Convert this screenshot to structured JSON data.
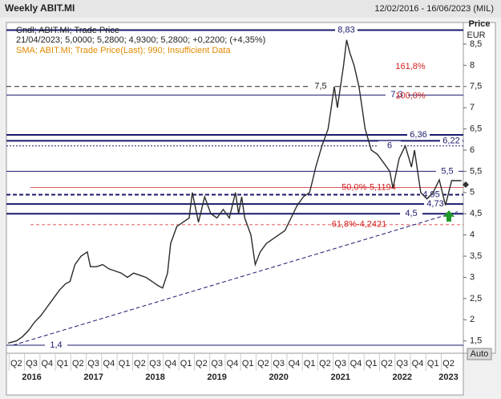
{
  "chart_data": {
    "type": "line",
    "title": "Weekly ABIT.MI",
    "date_range": "12/02/2016 - 16/06/2023 (MIL)",
    "y_axis_label": [
      "Price",
      "EUR"
    ],
    "legend_lines": [
      "Cndl; ABIT.MI; Trade Price",
      "21/04/2023; 5,0000; 5,2800; 4,9300; 5,2800; +0,2200; (+4,35%)",
      "SMA; ABIT.MI; Trade Price(Last); 990; Insufficient Data"
    ],
    "button": "Auto",
    "xlim": [
      2016.09,
      2023.49
    ],
    "ylim": [
      1.21,
      9.01
    ],
    "yticks": [
      {
        "value": 1.5,
        "label": "1,5"
      },
      {
        "value": 2,
        "label": "2"
      },
      {
        "value": 2.5,
        "label": "2,5"
      },
      {
        "value": 3,
        "label": "3"
      },
      {
        "value": 3.5,
        "label": "3,5"
      },
      {
        "value": 4,
        "label": "4"
      },
      {
        "value": 4.5,
        "label": "4,5"
      },
      {
        "value": 5,
        "label": "5"
      },
      {
        "value": 5.5,
        "label": "5,5"
      },
      {
        "value": 6,
        "label": "6"
      },
      {
        "value": 6.5,
        "label": "6,5"
      },
      {
        "value": 7,
        "label": "7"
      },
      {
        "value": 7.5,
        "label": "7,5"
      },
      {
        "value": 8,
        "label": "8"
      },
      {
        "value": 8.5,
        "label": "8,5"
      }
    ],
    "xticks": [
      {
        "value": 2016.25,
        "label": "Q2"
      },
      {
        "value": 2016.5,
        "label": "Q3"
      },
      {
        "value": 2016.75,
        "label": "Q4"
      },
      {
        "value": 2017.0,
        "label": "Q1"
      },
      {
        "value": 2017.25,
        "label": "Q2"
      },
      {
        "value": 2017.5,
        "label": "Q3"
      },
      {
        "value": 2017.75,
        "label": "Q4"
      },
      {
        "value": 2018.0,
        "label": "Q1"
      },
      {
        "value": 2018.25,
        "label": "Q2"
      },
      {
        "value": 2018.5,
        "label": "Q3"
      },
      {
        "value": 2018.75,
        "label": "Q4"
      },
      {
        "value": 2019.0,
        "label": "Q1"
      },
      {
        "value": 2019.25,
        "label": "Q2"
      },
      {
        "value": 2019.5,
        "label": "Q3"
      },
      {
        "value": 2019.75,
        "label": "Q4"
      },
      {
        "value": 2020.0,
        "label": "Q1"
      },
      {
        "value": 2020.25,
        "label": "Q2"
      },
      {
        "value": 2020.5,
        "label": "Q3"
      },
      {
        "value": 2020.75,
        "label": "Q4"
      },
      {
        "value": 2021.0,
        "label": "Q1"
      },
      {
        "value": 2021.25,
        "label": "Q2"
      },
      {
        "value": 2021.5,
        "label": "Q3"
      },
      {
        "value": 2021.75,
        "label": "Q4"
      },
      {
        "value": 2022.0,
        "label": "Q1"
      },
      {
        "value": 2022.25,
        "label": "Q2"
      },
      {
        "value": 2022.5,
        "label": "Q3"
      },
      {
        "value": 2022.75,
        "label": "Q4"
      },
      {
        "value": 2023.0,
        "label": "Q1"
      },
      {
        "value": 2023.25,
        "label": "Q2"
      }
    ],
    "year_ticks": [
      {
        "value": 2016.5,
        "label": "2016"
      },
      {
        "value": 2017.5,
        "label": "2017"
      },
      {
        "value": 2018.5,
        "label": "2018"
      },
      {
        "value": 2019.5,
        "label": "2019"
      },
      {
        "value": 2020.5,
        "label": "2020"
      },
      {
        "value": 2021.5,
        "label": "2021"
      },
      {
        "value": 2022.5,
        "label": "2022"
      },
      {
        "value": 2023.25,
        "label": "2023"
      }
    ],
    "series": [
      {
        "name": "Cndl; ABIT.MI; Trade Price",
        "color": "#2a2a2a",
        "x": [
          2016.12,
          2016.25,
          2016.35,
          2016.45,
          2016.55,
          2016.65,
          2016.75,
          2016.85,
          2016.95,
          2017.05,
          2017.12,
          2017.2,
          2017.3,
          2017.4,
          2017.45,
          2017.55,
          2017.65,
          2017.75,
          2017.85,
          2017.95,
          2018.05,
          2018.15,
          2018.25,
          2018.35,
          2018.45,
          2018.55,
          2018.62,
          2018.7,
          2018.75,
          2018.85,
          2018.95,
          2019.05,
          2019.1,
          2019.2,
          2019.3,
          2019.4,
          2019.5,
          2019.6,
          2019.7,
          2019.8,
          2019.85,
          2019.9,
          2019.95,
          2020.05,
          2020.12,
          2020.2,
          2020.3,
          2020.4,
          2020.5,
          2020.6,
          2020.7,
          2020.8,
          2020.9,
          2021.0,
          2021.05,
          2021.1,
          2021.2,
          2021.3,
          2021.35,
          2021.4,
          2021.45,
          2021.55,
          2021.6,
          2021.65,
          2021.72,
          2021.8,
          2021.85,
          2021.9,
          2022.0,
          2022.1,
          2022.2,
          2022.3,
          2022.35,
          2022.45,
          2022.55,
          2022.65,
          2022.7,
          2022.8,
          2022.9,
          2023.0,
          2023.1,
          2023.2,
          2023.3,
          2023.46
        ],
        "values": [
          1.45,
          1.5,
          1.6,
          1.75,
          1.95,
          2.1,
          2.3,
          2.5,
          2.7,
          2.85,
          2.9,
          3.3,
          3.5,
          3.6,
          3.25,
          3.25,
          3.3,
          3.2,
          3.15,
          3.1,
          3.0,
          3.1,
          3.05,
          3.0,
          2.9,
          2.8,
          2.75,
          3.1,
          3.8,
          4.2,
          4.3,
          4.4,
          5.0,
          4.3,
          4.9,
          4.5,
          4.4,
          4.6,
          4.4,
          5.0,
          4.5,
          4.9,
          4.4,
          4.0,
          3.3,
          3.6,
          3.8,
          3.9,
          4.0,
          4.1,
          4.4,
          4.7,
          4.9,
          5.0,
          5.3,
          5.6,
          6.1,
          6.5,
          7.0,
          7.5,
          7.0,
          8.0,
          8.6,
          8.3,
          8.0,
          7.5,
          7.0,
          6.5,
          6.0,
          5.9,
          5.7,
          5.5,
          5.1,
          5.8,
          6.1,
          5.6,
          6.0,
          5.0,
          4.85,
          5.0,
          5.3,
          4.7,
          5.28,
          5.28
        ]
      }
    ],
    "levels": [
      {
        "value": 8.83,
        "label": "8,83",
        "style": "solid-thick"
      },
      {
        "value": 7.5,
        "label": "7,5",
        "style": "dashed-black"
      },
      {
        "value": 7.3,
        "label": "7,3",
        "style": "solid"
      },
      {
        "value": 6.36,
        "label": "6,36",
        "style": "solid-thick"
      },
      {
        "value": 6.22,
        "label": "6,22",
        "style": "solid-thick"
      },
      {
        "value": 6.1,
        "label": "6",
        "style": "dotted"
      },
      {
        "value": 5.5,
        "label": "5,5",
        "style": "solid"
      },
      {
        "value": 4.95,
        "label": "4,95",
        "style": "dashed-thick"
      },
      {
        "value": 4.73,
        "label": "4,73",
        "style": "solid-thick"
      },
      {
        "value": 4.5,
        "label": "4,5",
        "style": "solid-thick"
      },
      {
        "value": 1.4,
        "label": "1,4",
        "style": "solid"
      }
    ],
    "fibonacci": [
      {
        "value": 7.97,
        "label": "161,8%",
        "line": false
      },
      {
        "value": 7.28,
        "label": "100,0%",
        "line": false
      },
      {
        "value": 5.1194,
        "label": "50,0%-5,1194",
        "line": true
      },
      {
        "value": 4.2421,
        "label": "61,8%-4,2421",
        "line": true
      }
    ],
    "fib_color": "#d42020",
    "level_color": "#1a1a6e",
    "trendline": {
      "x": [
        2016.2,
        2023.4
      ],
      "values": [
        1.4,
        4.55
      ]
    },
    "sma_color": "#e08a00"
  }
}
